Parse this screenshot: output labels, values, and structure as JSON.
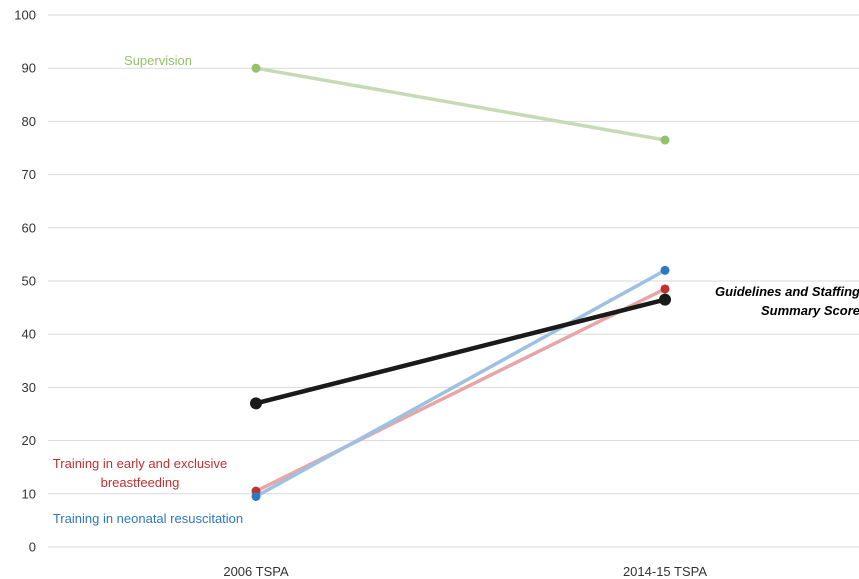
{
  "chart_data": {
    "type": "line",
    "categories": [
      "2006 TSPA",
      "2014-15 TSPA"
    ],
    "ylim": [
      0,
      100
    ],
    "yticks": [
      0,
      10,
      20,
      30,
      40,
      50,
      60,
      70,
      80,
      90,
      100
    ],
    "grid": true,
    "legend": "none",
    "series": [
      {
        "name": "Supervision",
        "values": [
          90,
          76.5
        ],
        "color": "#92c36a",
        "line_color": "#c5dbb3",
        "label_lines": [
          "Supervision"
        ],
        "summary": false
      },
      {
        "name": "Training in early and exclusive breastfeeding",
        "values": [
          10.5,
          48.5
        ],
        "color": "#c0302f",
        "line_color": "#e5a6a5",
        "label_lines": [
          "Training in early and exclusive",
          "breastfeeding"
        ],
        "summary": false
      },
      {
        "name": "Training in neonatal resuscitation",
        "values": [
          9.5,
          52
        ],
        "color": "#2d79c0",
        "line_color": "#9dc1e3",
        "label_lines": [
          "Training in neonatal resuscitation"
        ],
        "summary": false
      },
      {
        "name": "Guidelines and Staffing Summary Score",
        "values": [
          27,
          46.5
        ],
        "color": "#1a1a1a",
        "line_color": "#1a1a1a",
        "label_lines": [
          "Guidelines and Staffing",
          "Summary Score"
        ],
        "summary": true
      }
    ]
  }
}
